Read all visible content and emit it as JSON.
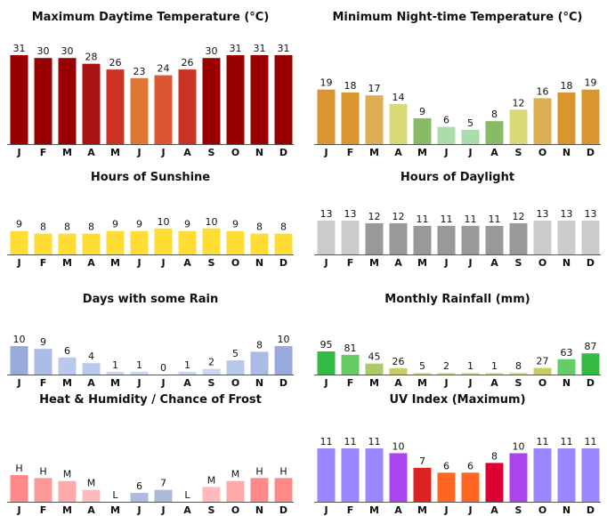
{
  "chart_data": [
    {
      "id": "max-temp",
      "type": "bar",
      "title": "Maximum Daytime Temperature (°C)",
      "categories": [
        "J",
        "F",
        "M",
        "A",
        "M",
        "J",
        "J",
        "A",
        "S",
        "O",
        "N",
        "D"
      ],
      "values": [
        31,
        30,
        30,
        28,
        26,
        23,
        24,
        26,
        30,
        31,
        31,
        31
      ],
      "ylim": [
        0,
        31
      ],
      "colors": [
        "#990000",
        "#990000",
        "#990000",
        "#aa1111",
        "#cc3322",
        "#dd7733",
        "#dd5533",
        "#cc3322",
        "#990000",
        "#990000",
        "#990000",
        "#990000"
      ]
    },
    {
      "id": "min-temp",
      "type": "bar",
      "title": "Minimum Night-time Temperature (°C)",
      "categories": [
        "J",
        "F",
        "M",
        "A",
        "M",
        "J",
        "J",
        "A",
        "S",
        "O",
        "N",
        "D"
      ],
      "values": [
        19,
        18,
        17,
        14,
        9,
        6,
        5,
        8,
        12,
        16,
        18,
        19
      ],
      "ylim": [
        0,
        31
      ],
      "colors": [
        "#d9952e",
        "#d9952e",
        "#deae55",
        "#d9d977",
        "#88bb66",
        "#aaddaa",
        "#aaddaa",
        "#88bb66",
        "#d9d977",
        "#deae55",
        "#d9952e",
        "#d9952e"
      ]
    },
    {
      "id": "sunshine",
      "type": "bar",
      "title": "Hours of Sunshine",
      "categories": [
        "J",
        "F",
        "M",
        "A",
        "M",
        "J",
        "J",
        "A",
        "S",
        "O",
        "N",
        "D"
      ],
      "values": [
        9,
        8,
        8,
        8,
        9,
        9,
        10,
        9,
        10,
        9,
        8,
        8
      ],
      "ylim": [
        0,
        13
      ],
      "colors": [
        "#ffdd33",
        "#ffdd33",
        "#ffdd33",
        "#ffdd33",
        "#ffdd33",
        "#ffdd33",
        "#ffdd33",
        "#ffdd33",
        "#ffdd33",
        "#ffdd33",
        "#ffdd33",
        "#ffdd33"
      ]
    },
    {
      "id": "daylight",
      "type": "bar",
      "title": "Hours of Daylight",
      "categories": [
        "J",
        "F",
        "M",
        "A",
        "M",
        "J",
        "J",
        "A",
        "S",
        "O",
        "N",
        "D"
      ],
      "values": [
        13,
        13,
        12,
        12,
        11,
        11,
        11,
        11,
        12,
        13,
        13,
        13
      ],
      "ylim": [
        0,
        13
      ],
      "colors": [
        "#cccccc",
        "#cccccc",
        "#999999",
        "#999999",
        "#999999",
        "#999999",
        "#999999",
        "#999999",
        "#999999",
        "#cccccc",
        "#cccccc",
        "#cccccc"
      ]
    },
    {
      "id": "rain-days",
      "type": "bar",
      "title": "Days with some Rain",
      "categories": [
        "J",
        "F",
        "M",
        "A",
        "M",
        "J",
        "J",
        "A",
        "S",
        "O",
        "N",
        "D"
      ],
      "values": [
        10,
        9,
        6,
        4,
        1,
        1,
        0,
        1,
        2,
        5,
        8,
        10
      ],
      "ylim": [
        0,
        10
      ],
      "colors": [
        "#99aadd",
        "#aabbe6",
        "#bbc8ee",
        "#bbc8ee",
        "#ccd6f2",
        "#ccd6f2",
        "#ccd6f2",
        "#ccd6f2",
        "#ccd6f2",
        "#bbc8ee",
        "#aabbe6",
        "#99aadd"
      ]
    },
    {
      "id": "rainfall",
      "type": "bar",
      "title": "Monthly Rainfall (mm)",
      "categories": [
        "J",
        "F",
        "M",
        "A",
        "M",
        "J",
        "J",
        "A",
        "S",
        "O",
        "N",
        "D"
      ],
      "values": [
        95,
        81,
        45,
        26,
        5,
        2,
        1,
        1,
        8,
        27,
        63,
        87
      ],
      "ylim": [
        0,
        95
      ],
      "colors": [
        "#33bb44",
        "#66cc66",
        "#aacc66",
        "#cccc66",
        "#dddd99",
        "#dddd99",
        "#dddd99",
        "#dddd99",
        "#dddd99",
        "#cccc66",
        "#66cc66",
        "#33bb44"
      ]
    },
    {
      "id": "humidity-frost",
      "type": "bar",
      "title": "Heat & Humidity / Chance of Frost",
      "categories": [
        "J",
        "F",
        "M",
        "A",
        "M",
        "J",
        "J",
        "A",
        "S",
        "O",
        "N",
        "D"
      ],
      "labels": [
        "H",
        "H",
        "M",
        "M",
        "L",
        "6",
        "7",
        "L",
        "M",
        "M",
        "H",
        "H"
      ],
      "values": [
        9,
        8,
        7,
        4,
        0,
        3,
        4,
        0,
        5,
        7,
        8,
        8
      ],
      "ylim": [
        0,
        9
      ],
      "colors": [
        "#ff8888",
        "#ff9999",
        "#ffaaaa",
        "#ffbbbb",
        "#ffcccc",
        "#aabbdd",
        "#aabbdd",
        "#ffcccc",
        "#ffbbbb",
        "#ffaaaa",
        "#ff8888",
        "#ff8888"
      ]
    },
    {
      "id": "uv-index",
      "type": "bar",
      "title": "UV Index (Maximum)",
      "categories": [
        "J",
        "F",
        "M",
        "A",
        "M",
        "J",
        "J",
        "A",
        "S",
        "O",
        "N",
        "D"
      ],
      "values": [
        11,
        11,
        11,
        10,
        7,
        6,
        6,
        8,
        10,
        11,
        11,
        11
      ],
      "ylim": [
        0,
        11
      ],
      "colors": [
        "#9988ff",
        "#9988ff",
        "#9988ff",
        "#aa44ee",
        "#dd2222",
        "#ff6622",
        "#ff6622",
        "#dd0033",
        "#aa44ee",
        "#9988ff",
        "#9988ff",
        "#9988ff"
      ]
    }
  ]
}
